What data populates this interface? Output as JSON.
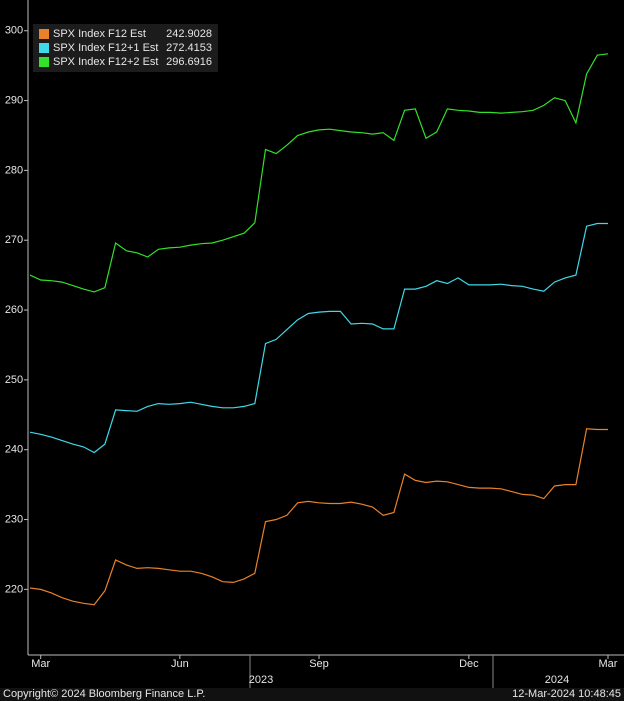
{
  "chart_data": {
    "type": "line",
    "categories": [
      null,
      "Mar",
      null,
      null,
      null,
      null,
      null,
      null,
      null,
      null,
      null,
      null,
      null,
      null,
      "Jun",
      null,
      null,
      null,
      null,
      null,
      null,
      null,
      null,
      null,
      null,
      null,
      null,
      "Sep",
      null,
      null,
      null,
      null,
      null,
      null,
      null,
      null,
      null,
      null,
      null,
      null,
      null,
      "Dec",
      null,
      null,
      null,
      null,
      null,
      null,
      null,
      null,
      null,
      null,
      null,
      null,
      "Mar"
    ],
    "x_groups": [
      "2023",
      "2024"
    ],
    "ylim": [
      210.6,
      304.4
    ],
    "yticks": [
      220,
      230,
      240,
      250,
      260,
      270,
      280,
      290,
      300
    ],
    "grid": false,
    "legend": "top-left",
    "series": [
      {
        "name": "SPX Index F12 Est",
        "last": 242.9028,
        "color": "#e8812a",
        "values": [
          220.2,
          220,
          219.5,
          218.8,
          218.3,
          218,
          217.8,
          219.8,
          224.2,
          223.5,
          223,
          223.1,
          223,
          222.8,
          222.6,
          222.6,
          222.3,
          221.8,
          221.1,
          221,
          221.5,
          222.3,
          229.7,
          230,
          230.6,
          232.4,
          232.6,
          232.4,
          232.3,
          232.3,
          232.5,
          232.2,
          231.8,
          230.6,
          231,
          236.5,
          235.6,
          235.3,
          235.5,
          235.4,
          235,
          234.6,
          234.5,
          234.5,
          234.4,
          234,
          233.6,
          233.5,
          233,
          234.8,
          235,
          235,
          243,
          242.9,
          242.9
        ]
      },
      {
        "name": "SPX Index F12+1 Est",
        "last": 272.4153,
        "color": "#3fd9e8",
        "values": [
          242.5,
          242.2,
          241.8,
          241.3,
          240.8,
          240.4,
          239.6,
          240.8,
          245.7,
          245.6,
          245.5,
          246.2,
          246.6,
          246.5,
          246.6,
          246.8,
          246.5,
          246.2,
          246,
          246,
          246.2,
          246.6,
          255.2,
          255.8,
          257.2,
          258.6,
          259.5,
          259.7,
          259.8,
          259.8,
          258,
          258.1,
          258,
          257.3,
          257.3,
          263,
          263,
          263.4,
          264.2,
          263.8,
          264.6,
          263.6,
          263.6,
          263.6,
          263.7,
          263.5,
          263.4,
          263,
          262.7,
          264,
          264.6,
          265,
          272,
          272.4,
          272.4
        ]
      },
      {
        "name": "SPX Index F12+2 Est",
        "last": 296.6916,
        "color": "#33e02a",
        "values": [
          265,
          264.3,
          264.2,
          264,
          263.5,
          263,
          262.6,
          263.2,
          269.6,
          268.5,
          268.2,
          267.6,
          268.7,
          268.9,
          269,
          269.3,
          269.5,
          269.6,
          270,
          270.5,
          271,
          272.5,
          283,
          282.4,
          283.6,
          285,
          285.5,
          285.8,
          285.9,
          285.7,
          285.5,
          285.4,
          285.2,
          285.4,
          284.3,
          288.6,
          288.8,
          284.6,
          285.5,
          288.8,
          288.6,
          288.5,
          288.3,
          288.3,
          288.2,
          288.3,
          288.4,
          288.6,
          289.3,
          290.4,
          290,
          286.8,
          293.8,
          296.5,
          296.7
        ]
      }
    ]
  },
  "footer": {
    "copyright": "Copyright© 2024 Bloomberg Finance L.P.",
    "timestamp": "12-Mar-2024 10:48:45"
  }
}
